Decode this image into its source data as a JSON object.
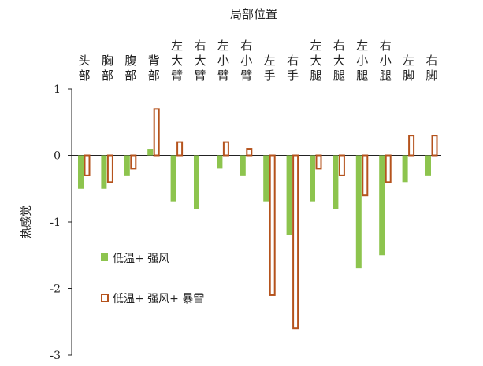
{
  "chart_data": {
    "type": "bar",
    "title": "局部位置",
    "ylabel": "热感觉",
    "ylim": [
      -3,
      1
    ],
    "yticks": [
      1,
      0,
      -1,
      -2,
      -3
    ],
    "categories": [
      "头部",
      "胸部",
      "腹部",
      "背部",
      "左大臂",
      "右大臂",
      "左小臂",
      "右小臂",
      "左手",
      "右手",
      "左大腿",
      "右大腿",
      "左小腿",
      "右小腿",
      "左脚",
      "右脚"
    ],
    "series": [
      {
        "name": "低温+ 强风",
        "style": "filled",
        "color": "#8dc44e",
        "values": [
          -0.5,
          -0.5,
          -0.3,
          0.1,
          -0.7,
          -0.8,
          -0.2,
          -0.3,
          -0.7,
          -1.2,
          -0.7,
          -0.8,
          -1.7,
          -1.5,
          -0.4,
          -0.3
        ]
      },
      {
        "name": "低温+ 强风+ 暴雪",
        "style": "outline",
        "color": "#b5531d",
        "values": [
          -0.3,
          -0.4,
          -0.2,
          0.7,
          0.2,
          0.0,
          0.2,
          0.1,
          -2.1,
          -2.6,
          -0.2,
          -0.3,
          -0.6,
          -0.4,
          0.3,
          0.3
        ]
      }
    ],
    "legend_position": "bottom-left",
    "grid": false
  }
}
